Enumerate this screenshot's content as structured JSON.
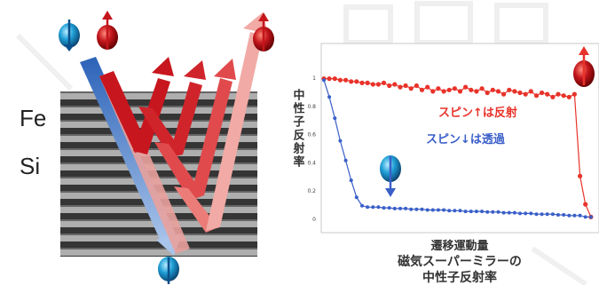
{
  "diagram": {
    "layer_labels": [
      "Fe",
      "Si"
    ]
  },
  "chart_data": {
    "type": "line",
    "ylabel": "中性子反射率",
    "xlabel": "遷移運動量",
    "title_lines": [
      "磁気スーパーミラーの",
      "中性子反射率"
    ],
    "y_ticks": [
      "1",
      "0.8",
      "0.6",
      "0.4",
      "0.2",
      "0"
    ],
    "ylim": [
      0,
      1
    ],
    "xlim": [
      0,
      1
    ],
    "series": [
      {
        "name": "スピン↑は反射",
        "color": "#e8332a",
        "x": [
          0.0,
          0.02,
          0.04,
          0.06,
          0.08,
          0.1,
          0.12,
          0.14,
          0.16,
          0.18,
          0.2,
          0.22,
          0.24,
          0.26,
          0.28,
          0.3,
          0.32,
          0.34,
          0.36,
          0.38,
          0.4,
          0.42,
          0.44,
          0.46,
          0.48,
          0.5,
          0.52,
          0.54,
          0.56,
          0.58,
          0.6,
          0.62,
          0.64,
          0.66,
          0.68,
          0.7,
          0.72,
          0.74,
          0.76,
          0.78,
          0.8,
          0.82,
          0.84,
          0.86,
          0.88,
          0.9,
          0.92,
          0.94,
          0.96,
          0.98
        ],
        "y": [
          0.99,
          0.99,
          0.99,
          0.98,
          0.98,
          0.97,
          0.97,
          0.96,
          0.96,
          0.95,
          0.95,
          0.96,
          0.94,
          0.95,
          0.93,
          0.94,
          0.92,
          0.94,
          0.91,
          0.93,
          0.9,
          0.92,
          0.9,
          0.91,
          0.92,
          0.9,
          0.93,
          0.91,
          0.9,
          0.92,
          0.89,
          0.91,
          0.9,
          0.88,
          0.91,
          0.9,
          0.89,
          0.88,
          0.9,
          0.87,
          0.89,
          0.88,
          0.86,
          0.88,
          0.87,
          0.86,
          0.88,
          0.3,
          0.1,
          0.01
        ]
      },
      {
        "name": "スピン↓は透過",
        "color": "#3a5fc8",
        "x": [
          0.0,
          0.02,
          0.04,
          0.06,
          0.08,
          0.1,
          0.12,
          0.14,
          0.16,
          0.18,
          0.2,
          0.22,
          0.24,
          0.26,
          0.28,
          0.3,
          0.32,
          0.34,
          0.36,
          0.38,
          0.4,
          0.42,
          0.44,
          0.46,
          0.48,
          0.5,
          0.52,
          0.54,
          0.56,
          0.58,
          0.6,
          0.62,
          0.64,
          0.66,
          0.68,
          0.7,
          0.72,
          0.74,
          0.76,
          0.78,
          0.8,
          0.82,
          0.84,
          0.86,
          0.88,
          0.9,
          0.92,
          0.94,
          0.96,
          0.98
        ],
        "y": [
          0.98,
          0.86,
          0.71,
          0.55,
          0.41,
          0.27,
          0.15,
          0.09,
          0.08,
          0.08,
          0.08,
          0.075,
          0.075,
          0.07,
          0.07,
          0.07,
          0.065,
          0.065,
          0.065,
          0.06,
          0.06,
          0.06,
          0.06,
          0.055,
          0.055,
          0.055,
          0.05,
          0.05,
          0.05,
          0.05,
          0.045,
          0.045,
          0.045,
          0.04,
          0.04,
          0.04,
          0.035,
          0.035,
          0.035,
          0.03,
          0.03,
          0.03,
          0.03,
          0.025,
          0.025,
          0.02,
          0.02,
          0.02,
          0.01,
          0.01
        ]
      }
    ]
  }
}
